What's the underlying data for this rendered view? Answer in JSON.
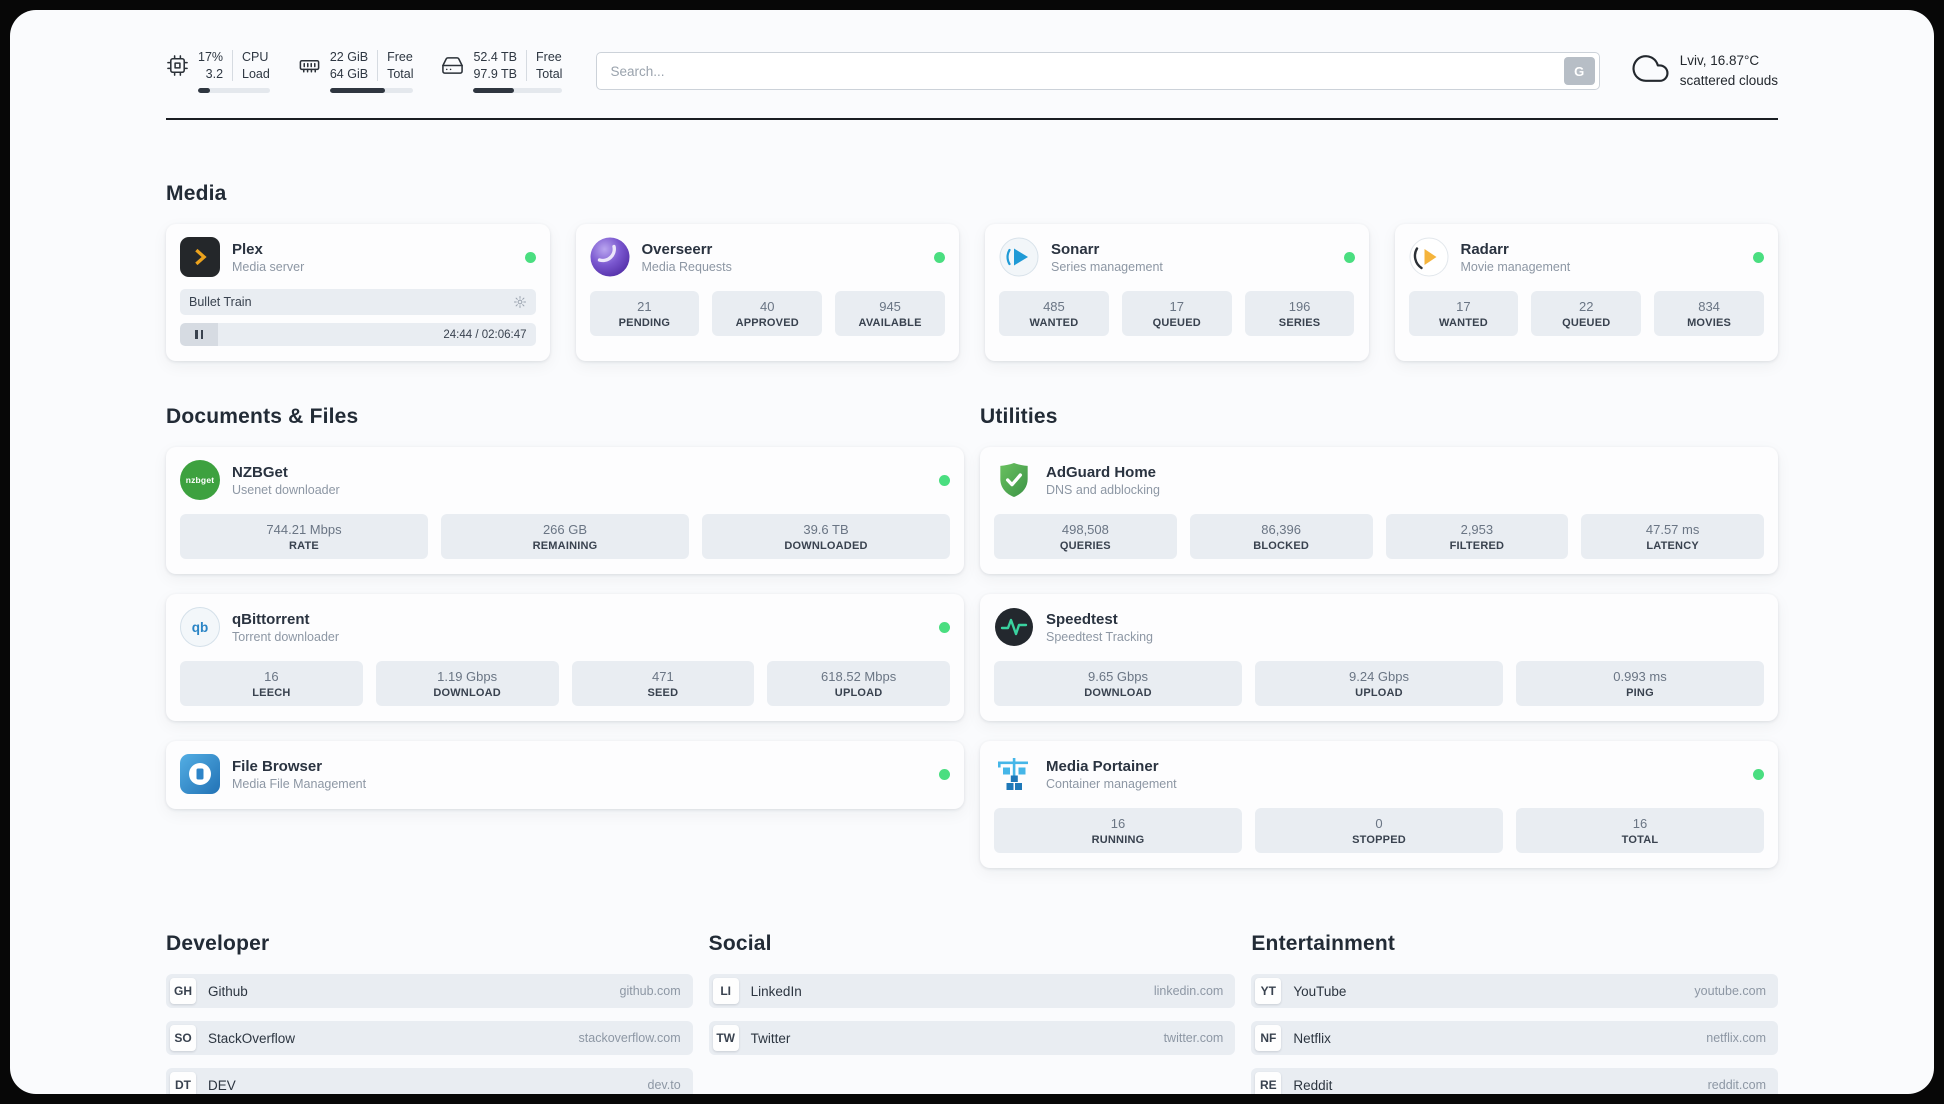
{
  "colors": {
    "status_online": "#4ade80",
    "progress_fill": "#2f3640",
    "stat_box_bg": "#e9edf2",
    "plex_gold": "#e8a21f",
    "adguard_green": "#4ca04e",
    "portainer_blue": "#2596d1"
  },
  "topbar": {
    "cpu": {
      "value_top": "17%",
      "value_bottom": "3.2",
      "label_top": "CPU",
      "label_bottom": "Load",
      "progress_percent": 17
    },
    "ram": {
      "value_top": "22 GiB",
      "value_bottom": "64 GiB",
      "label_top": "Free",
      "label_bottom": "Total",
      "progress_percent": 66
    },
    "disk": {
      "value_top": "52.4 TB",
      "value_bottom": "97.9 TB",
      "label_top": "Free",
      "label_bottom": "Total",
      "progress_percent": 46
    },
    "search": {
      "placeholder": "Search...",
      "button_label": "G"
    },
    "weather": {
      "location": "Lviv, 16.87°C",
      "condition": "scattered clouds"
    }
  },
  "sections": {
    "media": {
      "title": "Media",
      "cards": [
        {
          "name": "Plex",
          "subtitle": "Media server",
          "status": "online",
          "player": {
            "track": "Bullet Train",
            "time": "24:44 / 02:06:47"
          }
        },
        {
          "name": "Overseerr",
          "subtitle": "Media Requests",
          "status": "online",
          "stats": [
            {
              "value": "21",
              "label": "PENDING"
            },
            {
              "value": "40",
              "label": "APPROVED"
            },
            {
              "value": "945",
              "label": "AVAILABLE"
            }
          ]
        },
        {
          "name": "Sonarr",
          "subtitle": "Series management",
          "status": "online",
          "stats": [
            {
              "value": "485",
              "label": "WANTED"
            },
            {
              "value": "17",
              "label": "QUEUED"
            },
            {
              "value": "196",
              "label": "SERIES"
            }
          ]
        },
        {
          "name": "Radarr",
          "subtitle": "Movie management",
          "status": "online",
          "stats": [
            {
              "value": "17",
              "label": "WANTED"
            },
            {
              "value": "22",
              "label": "QUEUED"
            },
            {
              "value": "834",
              "label": "MOVIES"
            }
          ]
        }
      ]
    },
    "documents": {
      "title": "Documents & Files",
      "cards": [
        {
          "name": "NZBGet",
          "subtitle": "Usenet downloader",
          "status": "online",
          "icon_text": "nzbget",
          "stats": [
            {
              "value": "744.21 Mbps",
              "label": "RATE"
            },
            {
              "value": "266 GB",
              "label": "REMAINING"
            },
            {
              "value": "39.6 TB",
              "label": "DOWNLOADED"
            }
          ]
        },
        {
          "name": "qBittorrent",
          "subtitle": "Torrent downloader",
          "status": "online",
          "icon_text": "qb",
          "stats": [
            {
              "value": "16",
              "label": "LEECH"
            },
            {
              "value": "1.19 Gbps",
              "label": "DOWNLOAD"
            },
            {
              "value": "471",
              "label": "SEED"
            },
            {
              "value": "618.52 Mbps",
              "label": "UPLOAD"
            }
          ]
        },
        {
          "name": "File Browser",
          "subtitle": "Media File Management",
          "status": "online"
        }
      ]
    },
    "utilities": {
      "title": "Utilities",
      "cards": [
        {
          "name": "AdGuard Home",
          "subtitle": "DNS and adblocking",
          "stats": [
            {
              "value": "498,508",
              "label": "QUERIES"
            },
            {
              "value": "86,396",
              "label": "BLOCKED"
            },
            {
              "value": "2,953",
              "label": "FILTERED"
            },
            {
              "value": "47.57 ms",
              "label": "LATENCY"
            }
          ]
        },
        {
          "name": "Speedtest",
          "subtitle": "Speedtest Tracking",
          "stats": [
            {
              "value": "9.65 Gbps",
              "label": "DOWNLOAD"
            },
            {
              "value": "9.24 Gbps",
              "label": "UPLOAD"
            },
            {
              "value": "0.993 ms",
              "label": "PING"
            }
          ]
        },
        {
          "name": "Media Portainer",
          "subtitle": "Container management",
          "status": "online",
          "stats": [
            {
              "value": "16",
              "label": "RUNNING"
            },
            {
              "value": "0",
              "label": "STOPPED"
            },
            {
              "value": "16",
              "label": "TOTAL"
            }
          ]
        }
      ]
    },
    "developer": {
      "title": "Developer",
      "links": [
        {
          "abbr": "GH",
          "name": "Github",
          "domain": "github.com"
        },
        {
          "abbr": "SO",
          "name": "StackOverflow",
          "domain": "stackoverflow.com"
        },
        {
          "abbr": "DT",
          "name": "DEV",
          "domain": "dev.to"
        }
      ]
    },
    "social": {
      "title": "Social",
      "links": [
        {
          "abbr": "LI",
          "name": "LinkedIn",
          "domain": "linkedin.com"
        },
        {
          "abbr": "TW",
          "name": "Twitter",
          "domain": "twitter.com"
        }
      ]
    },
    "entertainment": {
      "title": "Entertainment",
      "links": [
        {
          "abbr": "YT",
          "name": "YouTube",
          "domain": "youtube.com"
        },
        {
          "abbr": "NF",
          "name": "Netflix",
          "domain": "netflix.com"
        },
        {
          "abbr": "RE",
          "name": "Reddit",
          "domain": "reddit.com"
        }
      ]
    }
  }
}
